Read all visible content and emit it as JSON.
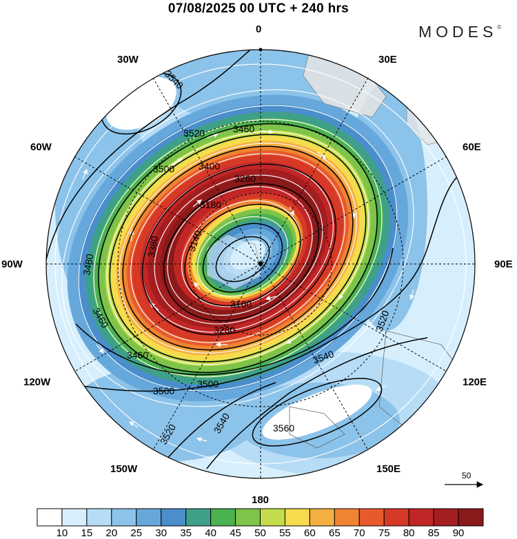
{
  "header": {
    "title": "07/08/2025  00 UTC  + 240 hrs",
    "brand": "MODES"
  },
  "longitude_labels": {
    "lon_0": "0",
    "lon_30e": "30E",
    "lon_60e": "60E",
    "lon_90e": "90E",
    "lon_120e": "120E",
    "lon_150e": "150E",
    "lon_180": "180",
    "lon_150w": "150W",
    "lon_120w": "120W",
    "lon_90w": "90W",
    "lon_60w": "60W",
    "lon_30w": "30W"
  },
  "contour_labels": [
    "3540",
    "3520",
    "3460",
    "3500",
    "3400",
    "3260",
    "3180",
    "3140",
    "3160",
    "3280",
    "3380",
    "3480",
    "3460",
    "3520",
    "3560",
    "3540",
    "3500",
    "3500",
    "3520",
    "3540",
    "3460"
  ],
  "reference_vector": {
    "value": "50"
  },
  "colorbar": {
    "ticks": [
      "10",
      "15",
      "20",
      "25",
      "30",
      "35",
      "40",
      "45",
      "50",
      "55",
      "60",
      "65",
      "70",
      "75",
      "80",
      "85",
      "90"
    ],
    "colors": [
      "#ffffff",
      "#d7effc",
      "#b7dcf6",
      "#8cc3ea",
      "#67a8dc",
      "#4a8ecb",
      "#3fa08a",
      "#4cb150",
      "#7ec44a",
      "#c4dc4c",
      "#f6dc4d",
      "#f5b042",
      "#ef8433",
      "#e85a2c",
      "#d63a27",
      "#c12626",
      "#a41d1f",
      "#8b1a1a"
    ]
  }
}
